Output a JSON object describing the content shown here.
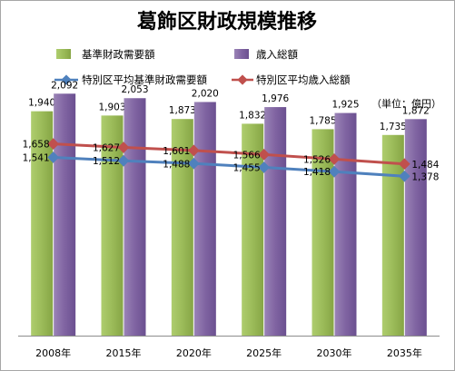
{
  "chart_data": {
    "type": "bar",
    "title": "葛飾区財政規模推移",
    "unit_label": "（単位：億円）",
    "categories": [
      "2008年",
      "2015年",
      "2020年",
      "2025年",
      "2030年",
      "2035年"
    ],
    "ylim": [
      0,
      2400
    ],
    "grid": false,
    "legend_position": "top",
    "bar_series": [
      {
        "name": "基準財政需要額",
        "color": "#9bbb59",
        "values": [
          1940,
          1903,
          1873,
          1832,
          1785,
          1735
        ]
      },
      {
        "name": "歳入総額",
        "color": "#8064a2",
        "values": [
          2092,
          2053,
          2020,
          1976,
          1925,
          1872
        ]
      }
    ],
    "line_series": [
      {
        "name": "特別区平均基準財政需要額",
        "color": "#4f81bd",
        "values": [
          1541,
          1512,
          1488,
          1455,
          1418,
          1378
        ]
      },
      {
        "name": "特別区平均歳入総額",
        "color": "#c0504d",
        "values": [
          1658,
          1627,
          1601,
          1566,
          1526,
          1484
        ]
      }
    ]
  }
}
